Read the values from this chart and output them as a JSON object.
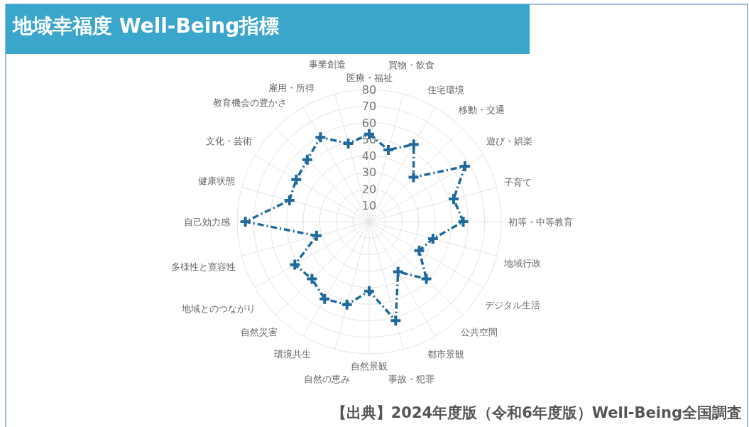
{
  "chart_data": {
    "type": "radar",
    "title": "地域幸福度 Well-Being指標",
    "categories": [
      "医療・福祉",
      "買物・飲食",
      "住宅環境",
      "移動・交通",
      "遊び・娯楽",
      "子育て",
      "初等・中等教育",
      "地域行政",
      "デジタル生活",
      "公共空間",
      "都市景観",
      "事故・犯罪",
      "自然景観",
      "自然の恵み",
      "環境共生",
      "自然災害",
      "地域とのつながり",
      "多様性と寛容性",
      "自己効力感",
      "健康状態",
      "文化・芸術",
      "教育機会の豊かさ",
      "雇用・所得",
      "事業創造"
    ],
    "series": [
      {
        "color": "#1f6a9c",
        "values": [
          53,
          45,
          54,
          38,
          67,
          53,
          57,
          40,
          35,
          49,
          35,
          62,
          42,
          52,
          54,
          49,
          52,
          33,
          75,
          50,
          51,
          53,
          59,
          49
        ]
      }
    ],
    "ylim": [
      0,
      80
    ],
    "yticks": [
      10,
      20,
      30,
      40,
      50,
      60,
      70,
      80
    ],
    "grid": true,
    "marker": "cross",
    "line_style": "dashdot",
    "annotations": [
      "【出典】2024年度版（令和6年度版）Well-Being全国調査"
    ]
  }
}
